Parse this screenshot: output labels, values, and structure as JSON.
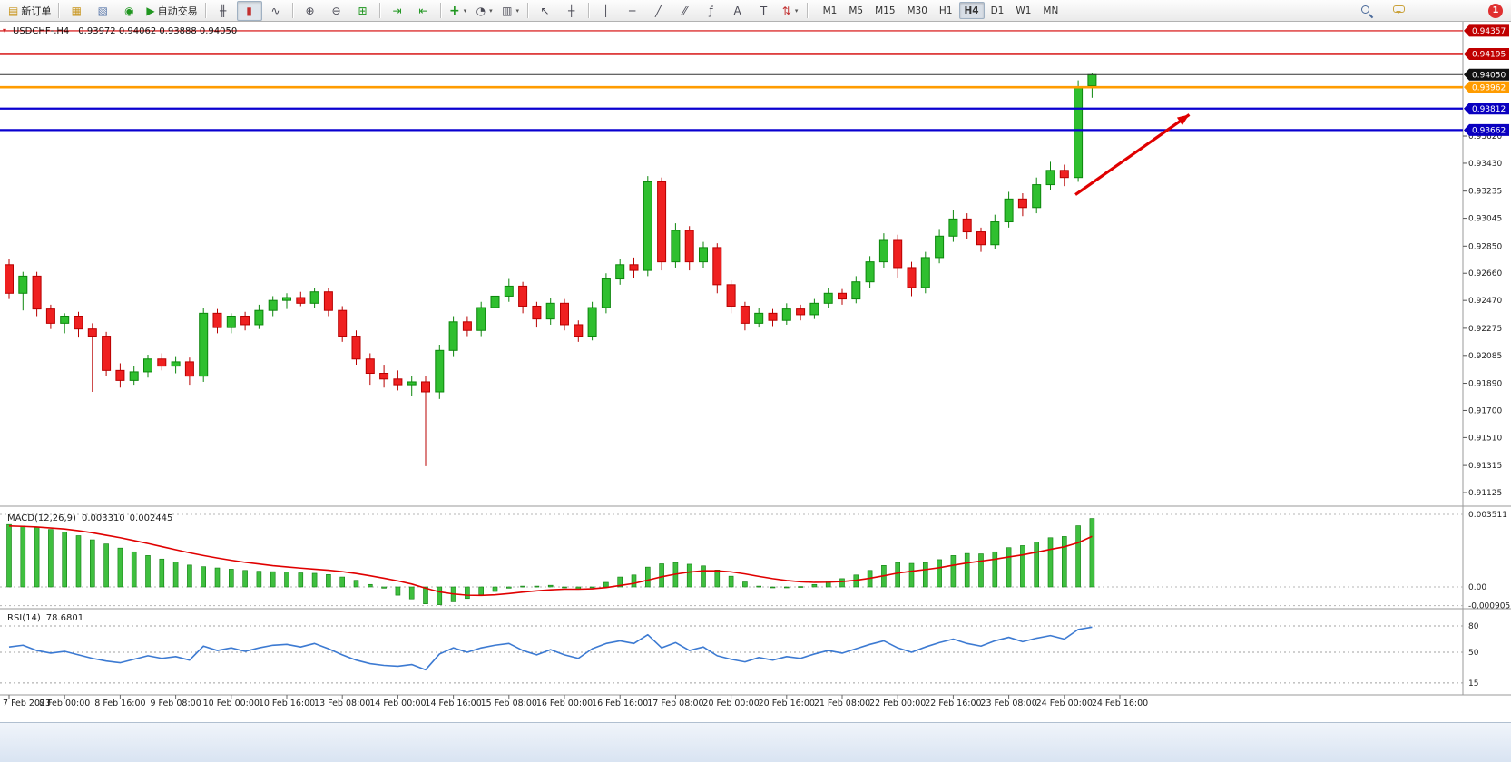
{
  "toolbar": {
    "dd_glyph": "▾",
    "buttons": {
      "new_order": {
        "glyph": "▤",
        "label": "新订单"
      },
      "new_chart": {
        "glyph": "▦"
      },
      "profiles": {
        "glyph": "▧"
      },
      "refresh": {
        "glyph": "◉"
      },
      "auto_trading": {
        "glyph": "▶",
        "label": "自动交易"
      },
      "bars": {
        "glyph": "╫"
      },
      "candles": {
        "glyph": "▮"
      },
      "line_chart": {
        "glyph": "∿"
      },
      "zoom_in": {
        "glyph": "⊕"
      },
      "zoom_out": {
        "glyph": "⊖"
      },
      "tile": {
        "glyph": "⊞"
      },
      "auto_scroll": {
        "glyph": "⇥"
      },
      "chart_shift": {
        "glyph": "⇤"
      },
      "indicators": {
        "glyph": "+"
      },
      "periods": {
        "glyph": "◔"
      },
      "templates": {
        "glyph": "▥"
      },
      "cursor": {
        "glyph": "↖"
      },
      "crosshair": {
        "glyph": "┼"
      },
      "vline": {
        "glyph": "│"
      },
      "hline": {
        "glyph": "─"
      },
      "trendline": {
        "glyph": "╱"
      },
      "channel": {
        "glyph": "⁄⁄"
      },
      "fibonacci": {
        "glyph": "ƒ"
      },
      "text_tool": {
        "glyph": "A"
      },
      "label_tool": {
        "glyph": "T"
      },
      "arrows": {
        "glyph": "⇅"
      }
    },
    "timeframes": [
      "M1",
      "M5",
      "M15",
      "M30",
      "H1",
      "H4",
      "D1",
      "W1",
      "MN"
    ],
    "active_timeframe": "H4",
    "notification_badge": "1"
  },
  "chart": {
    "header": {
      "marker_glyph": "▾",
      "symbol_text": "USDCHF-,H4",
      "ohlc_text": "0.93972 0.94062 0.93888 0.94050"
    }
  },
  "chart_data": {
    "type": "candlestick",
    "symbol": "USDCHF-",
    "timeframe": "H4",
    "current_ohlc": {
      "open": 0.93972,
      "high": 0.94062,
      "low": 0.93888,
      "close": 0.9405
    },
    "ylim": [
      0.9103,
      0.9442
    ],
    "background": "#ffffff",
    "up_color": "#2fbf2f",
    "up_stroke": "#0d870d",
    "down_color": "#ef2020",
    "down_stroke": "#b80000",
    "candles": [
      [
        0.9272,
        0.9276,
        0.9248,
        0.9252
      ],
      [
        0.9252,
        0.9267,
        0.924,
        0.9264
      ],
      [
        0.9264,
        0.9267,
        0.9236,
        0.9241
      ],
      [
        0.9241,
        0.9244,
        0.9227,
        0.9231
      ],
      [
        0.9231,
        0.9238,
        0.9224,
        0.9236
      ],
      [
        0.9236,
        0.9239,
        0.9221,
        0.9227
      ],
      [
        0.9227,
        0.9231,
        0.9183,
        0.9222
      ],
      [
        0.9222,
        0.9225,
        0.9194,
        0.9198
      ],
      [
        0.9198,
        0.9203,
        0.9186,
        0.9191
      ],
      [
        0.9191,
        0.9201,
        0.9188,
        0.9197
      ],
      [
        0.9197,
        0.9209,
        0.9193,
        0.9206
      ],
      [
        0.9206,
        0.921,
        0.9198,
        0.9201
      ],
      [
        0.9201,
        0.9208,
        0.9196,
        0.9204
      ],
      [
        0.9204,
        0.9207,
        0.9188,
        0.9194
      ],
      [
        0.9194,
        0.9242,
        0.919,
        0.9238
      ],
      [
        0.9238,
        0.9241,
        0.9224,
        0.9228
      ],
      [
        0.9228,
        0.9238,
        0.9224,
        0.9236
      ],
      [
        0.9236,
        0.9239,
        0.9226,
        0.923
      ],
      [
        0.923,
        0.9244,
        0.9227,
        0.924
      ],
      [
        0.924,
        0.925,
        0.9236,
        0.9247
      ],
      [
        0.9247,
        0.9252,
        0.9241,
        0.9249
      ],
      [
        0.9249,
        0.9253,
        0.9243,
        0.9245
      ],
      [
        0.9245,
        0.9256,
        0.9242,
        0.9253
      ],
      [
        0.9253,
        0.9256,
        0.9236,
        0.924
      ],
      [
        0.924,
        0.9243,
        0.9218,
        0.9222
      ],
      [
        0.9222,
        0.9226,
        0.9202,
        0.9206
      ],
      [
        0.9206,
        0.921,
        0.9188,
        0.9196
      ],
      [
        0.9196,
        0.9202,
        0.9186,
        0.9192
      ],
      [
        0.9192,
        0.9198,
        0.9184,
        0.9188
      ],
      [
        0.9188,
        0.9194,
        0.918,
        0.919
      ],
      [
        0.919,
        0.9194,
        0.9131,
        0.9183
      ],
      [
        0.9183,
        0.9216,
        0.9178,
        0.9212
      ],
      [
        0.9212,
        0.9236,
        0.9208,
        0.9232
      ],
      [
        0.9232,
        0.9236,
        0.9222,
        0.9226
      ],
      [
        0.9226,
        0.9246,
        0.9222,
        0.9242
      ],
      [
        0.9242,
        0.9256,
        0.9238,
        0.925
      ],
      [
        0.925,
        0.9262,
        0.9246,
        0.9257
      ],
      [
        0.9257,
        0.926,
        0.9238,
        0.9243
      ],
      [
        0.9243,
        0.9246,
        0.9228,
        0.9234
      ],
      [
        0.9234,
        0.9249,
        0.923,
        0.9245
      ],
      [
        0.9245,
        0.9248,
        0.9226,
        0.923
      ],
      [
        0.923,
        0.9233,
        0.9218,
        0.9222
      ],
      [
        0.9222,
        0.9246,
        0.9219,
        0.9242
      ],
      [
        0.9242,
        0.9266,
        0.9238,
        0.9262
      ],
      [
        0.9262,
        0.9276,
        0.9258,
        0.9272
      ],
      [
        0.9272,
        0.9277,
        0.9263,
        0.9268
      ],
      [
        0.9268,
        0.9334,
        0.9264,
        0.933
      ],
      [
        0.933,
        0.9333,
        0.9268,
        0.9274
      ],
      [
        0.9274,
        0.9301,
        0.927,
        0.9296
      ],
      [
        0.9296,
        0.9299,
        0.9268,
        0.9274
      ],
      [
        0.9274,
        0.9288,
        0.927,
        0.9284
      ],
      [
        0.9284,
        0.9287,
        0.9252,
        0.9258
      ],
      [
        0.9258,
        0.9261,
        0.9238,
        0.9243
      ],
      [
        0.9243,
        0.9246,
        0.9226,
        0.9231
      ],
      [
        0.9231,
        0.9242,
        0.9228,
        0.9238
      ],
      [
        0.9238,
        0.9241,
        0.9229,
        0.9233
      ],
      [
        0.9233,
        0.9245,
        0.923,
        0.9241
      ],
      [
        0.9241,
        0.9244,
        0.9233,
        0.9237
      ],
      [
        0.9237,
        0.9248,
        0.9234,
        0.9245
      ],
      [
        0.9245,
        0.9256,
        0.9242,
        0.9252
      ],
      [
        0.9252,
        0.9255,
        0.9244,
        0.9248
      ],
      [
        0.9248,
        0.9264,
        0.9245,
        0.926
      ],
      [
        0.926,
        0.9278,
        0.9256,
        0.9274
      ],
      [
        0.9274,
        0.9294,
        0.927,
        0.9289
      ],
      [
        0.9289,
        0.9293,
        0.9263,
        0.927
      ],
      [
        0.927,
        0.9274,
        0.925,
        0.9256
      ],
      [
        0.9256,
        0.9281,
        0.9252,
        0.9277
      ],
      [
        0.9277,
        0.9297,
        0.9273,
        0.9292
      ],
      [
        0.9292,
        0.931,
        0.9288,
        0.9304
      ],
      [
        0.9304,
        0.9308,
        0.929,
        0.9295
      ],
      [
        0.9295,
        0.9298,
        0.9281,
        0.9286
      ],
      [
        0.9286,
        0.9307,
        0.9283,
        0.9302
      ],
      [
        0.9302,
        0.9323,
        0.9298,
        0.9318
      ],
      [
        0.9318,
        0.9322,
        0.9306,
        0.9312
      ],
      [
        0.9312,
        0.9333,
        0.9308,
        0.9328
      ],
      [
        0.9328,
        0.9344,
        0.9324,
        0.9338
      ],
      [
        0.9338,
        0.9342,
        0.9327,
        0.9333
      ],
      [
        0.9333,
        0.9401,
        0.933,
        0.9396
      ],
      [
        0.93972,
        0.94062,
        0.93888,
        0.9405
      ]
    ],
    "price_axis_labels": [
      0.9362,
      0.9343,
      0.93235,
      0.93045,
      0.9285,
      0.9266,
      0.9247,
      0.92275,
      0.92085,
      0.9189,
      0.917,
      0.9151,
      0.91315,
      0.91125
    ],
    "horizontal_lines": [
      {
        "price": 0.94357,
        "color": "#d40000",
        "width": 1.2,
        "label": "0.94357",
        "label_bg": "#c00000",
        "label_color": "#ffffff"
      },
      {
        "price": 0.94195,
        "color": "#d40000",
        "width": 2.4,
        "label": "0.94195",
        "label_bg": "#c00000",
        "label_color": "#ffffff"
      },
      {
        "price": 0.93962,
        "color": "#ff9c00",
        "width": 2.6,
        "label": "0.93962",
        "label_bg": "#ff9c00",
        "label_color": "#ffffff"
      },
      {
        "price": 0.93812,
        "color": "#0a00d0",
        "width": 2.2,
        "label": "0.93812",
        "label_bg": "#0a00c0",
        "label_color": "#ffffff"
      },
      {
        "price": 0.93662,
        "color": "#0a00d0",
        "width": 2.2,
        "label": "0.93662",
        "label_bg": "#0a00c0",
        "label_color": "#ffffff"
      }
    ],
    "current_price": {
      "price": 0.9405,
      "label": "0.94050",
      "label_bg": "#111111",
      "label_color": "#ffffff",
      "line_color": "#333333"
    },
    "trend_arrow": {
      "from": {
        "bar": 76.8,
        "price": 0.9321
      },
      "to": {
        "bar": 85,
        "price": 0.9377
      },
      "color": "#e00000"
    },
    "indicators": {
      "macd": {
        "name_text": "MACD(12,26,9)",
        "value_main": "0.003310",
        "value_signal": "0.002445",
        "axis_labels": [
          {
            "text": "0.003511",
            "v": 0.003511
          },
          {
            "text": "0.00",
            "v": 0
          },
          {
            "text": "-0.000905",
            "v": -0.000905
          }
        ],
        "histogram_color": "#3fbf3f",
        "histogram_stroke": "#0f7d0f",
        "signal_color": "#e00000",
        "values": [
          0.00302,
          0.00295,
          0.00288,
          0.00278,
          0.00265,
          0.00248,
          0.00228,
          0.00208,
          0.00188,
          0.0017,
          0.00152,
          0.00135,
          0.0012,
          0.00106,
          0.00098,
          0.00092,
          0.00086,
          0.0008,
          0.00076,
          0.00074,
          0.00072,
          0.00068,
          0.00066,
          0.0006,
          0.00048,
          0.00032,
          0.00012,
          -6e-05,
          -0.0004,
          -0.00058,
          -0.00082,
          -0.00086,
          -0.00072,
          -0.00056,
          -0.00038,
          -0.00022,
          -6e-05,
          4e-05,
          4e-05,
          8e-05,
          0.0,
          -0.00012,
          -2e-05,
          0.00022,
          0.00048,
          0.00058,
          0.00096,
          0.00112,
          0.00118,
          0.0011,
          0.00102,
          0.00082,
          0.00052,
          0.00024,
          4e-05,
          -4e-05,
          -2e-05,
          2e-05,
          0.00012,
          0.00028,
          0.0004,
          0.00058,
          0.0008,
          0.00104,
          0.00118,
          0.00114,
          0.00118,
          0.00132,
          0.00152,
          0.00162,
          0.0016,
          0.0017,
          0.0019,
          0.002,
          0.00218,
          0.00238,
          0.00244,
          0.00296,
          0.00331
        ],
        "signal": [
          0.00295,
          0.00293,
          0.0029,
          0.00285,
          0.0028,
          0.00272,
          0.00262,
          0.0025,
          0.00238,
          0.00224,
          0.0021,
          0.00195,
          0.0018,
          0.00165,
          0.00152,
          0.0014,
          0.00129,
          0.00119,
          0.00111,
          0.00103,
          0.00097,
          0.00091,
          0.00086,
          0.00081,
          0.00074,
          0.00065,
          0.00054,
          0.00042,
          0.00029,
          0.00014,
          -6e-05,
          -0.00024,
          -0.00034,
          -0.0004,
          -0.00041,
          -0.00038,
          -0.00032,
          -0.00025,
          -0.00019,
          -0.00014,
          -0.00011,
          -0.00011,
          -9e-05,
          -3e-05,
          7e-05,
          0.00017,
          0.00033,
          0.00049,
          0.00062,
          0.00072,
          0.00078,
          0.00078,
          0.00073,
          0.00063,
          0.00051,
          0.0004,
          0.00031,
          0.00025,
          0.00022,
          0.00023,
          0.00026,
          0.00032,
          0.00042,
          0.00054,
          0.00067,
          0.00076,
          0.00084,
          0.00093,
          0.00105,
          0.00116,
          0.00125,
          0.00134,
          0.00145,
          0.00155,
          0.00168,
          0.00182,
          0.00194,
          0.00214,
          0.002445
        ]
      },
      "rsi": {
        "name_text": "RSI(14)",
        "value_text": "78.6801",
        "line_color": "#3c7ad2",
        "levels": [
          80,
          50,
          15
        ],
        "level_labels": [
          "80",
          "50",
          "15"
        ],
        "values": [
          56,
          58,
          52,
          49,
          51,
          47,
          43,
          40,
          38,
          42,
          46,
          43,
          45,
          41,
          57,
          52,
          55,
          51,
          55,
          58,
          59,
          56,
          60,
          54,
          47,
          41,
          37,
          35,
          34,
          36,
          30,
          48,
          55,
          50,
          55,
          58,
          60,
          52,
          47,
          53,
          47,
          43,
          54,
          60,
          63,
          60,
          70,
          55,
          61,
          52,
          56,
          46,
          42,
          39,
          44,
          41,
          45,
          43,
          48,
          52,
          49,
          54,
          59,
          63,
          55,
          50,
          56,
          61,
          65,
          60,
          57,
          63,
          67,
          62,
          66,
          69,
          65,
          76,
          78.68
        ]
      }
    },
    "time_labels": [
      [
        "7 Feb 2023",
        0
      ],
      [
        "8 Feb 00:00",
        4
      ],
      [
        "8 Feb 16:00",
        8
      ],
      [
        "9 Feb 08:00",
        12
      ],
      [
        "10 Feb 00:00",
        16
      ],
      [
        "10 Feb 16:00",
        20
      ],
      [
        "13 Feb 08:00",
        24
      ],
      [
        "14 Feb 00:00",
        28
      ],
      [
        "14 Feb 16:00",
        32
      ],
      [
        "15 Feb 08:00",
        36
      ],
      [
        "16 Feb 00:00",
        40
      ],
      [
        "16 Feb 16:00",
        44
      ],
      [
        "17 Feb 08:00",
        48
      ],
      [
        "20 Feb 00:00",
        52
      ],
      [
        "20 Feb 16:00",
        56
      ],
      [
        "21 Feb 08:00",
        60
      ],
      [
        "22 Feb 00:00",
        64
      ],
      [
        "22 Feb 16:00",
        68
      ],
      [
        "23 Feb 08:00",
        72
      ],
      [
        "24 Feb 00:00",
        76
      ],
      [
        "24 Feb 16:00",
        80
      ]
    ]
  }
}
